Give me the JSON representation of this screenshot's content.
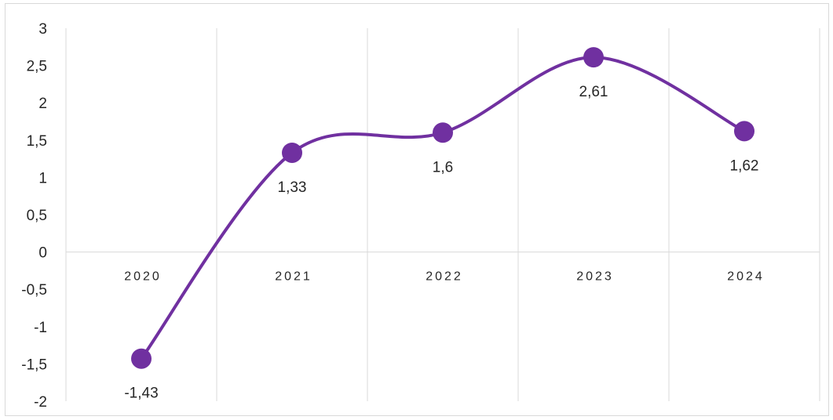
{
  "chart_data": {
    "type": "line",
    "smooth": true,
    "categories": [
      "2020",
      "2021",
      "2022",
      "2023",
      "2024"
    ],
    "series": [
      {
        "values": [
          -1.43,
          1.33,
          1.6,
          2.61,
          1.62
        ]
      }
    ],
    "data_labels": [
      "-1,43",
      "1,33",
      "1,6",
      "2,61",
      "1,62"
    ],
    "y_ticks": [
      3,
      2.5,
      2,
      1.5,
      1,
      0.5,
      0,
      -0.5,
      -1,
      -1.5,
      -2
    ],
    "y_tick_labels": [
      "3",
      "2,5",
      "2",
      "1,5",
      "1",
      "0,5",
      "0",
      "-0,5",
      "-1",
      "-1,5",
      "-2"
    ],
    "ylim": [
      -2,
      3
    ],
    "grid": "vertical",
    "legend": "none",
    "colors": {
      "series": "#7030a0",
      "grid": "#d9d9d9",
      "text": "#262626"
    }
  }
}
